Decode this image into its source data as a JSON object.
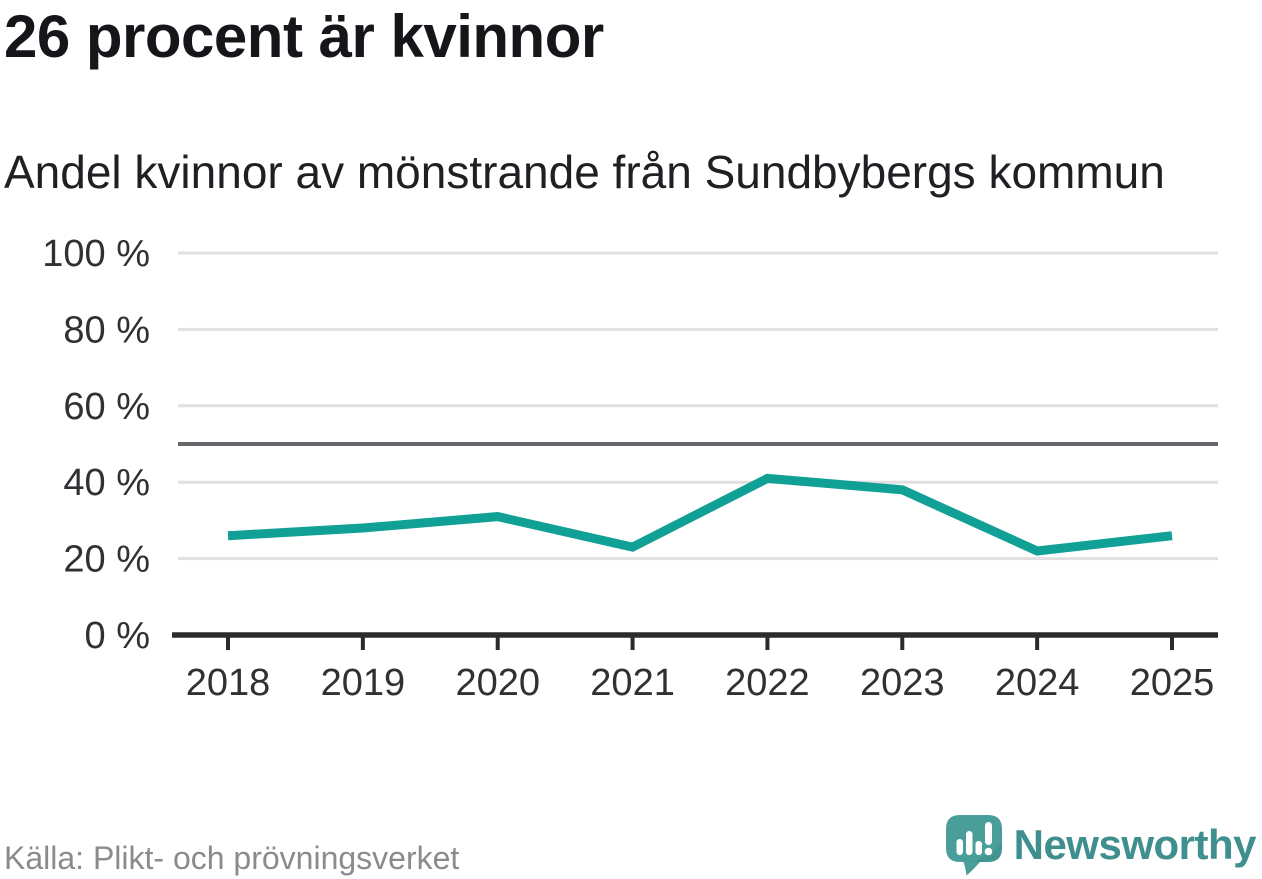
{
  "header": {
    "title": "26 procent är kvinnor",
    "subtitle": "Andel kvinnor av mönstrande från Sundbybergs kommun"
  },
  "chart_data": {
    "type": "line",
    "title": "26 procent är kvinnor",
    "subtitle": "Andel kvinnor av mönstrande från Sundbybergs kommun",
    "x": [
      "2018",
      "2019",
      "2020",
      "2021",
      "2022",
      "2023",
      "2024",
      "2025"
    ],
    "series": [
      {
        "name": "Andel kvinnor av mönstrande",
        "values": [
          26,
          28,
          31,
          23,
          41,
          38,
          22,
          26
        ]
      }
    ],
    "unit": "%",
    "ylim": [
      0,
      100
    ],
    "y_ticks": [
      0,
      20,
      40,
      60,
      80,
      100
    ],
    "y_tick_format": "{v} %",
    "reference_line": 50,
    "grid": "horizontal",
    "legend": "none",
    "colors": {
      "line": "#11a096",
      "grid": "#e0e0e0",
      "reference_line": "#67676c",
      "axis": "#2b2b2b",
      "tick_label": "#303035"
    }
  },
  "footer": {
    "source": "Källa: Plikt- och prövningsverket",
    "brand": "Newsworthy",
    "brand_color": "#3e8f8d",
    "logo_bubble_color": "#4a9e99",
    "logo_glyphs": "bar-chart-exclamation"
  }
}
